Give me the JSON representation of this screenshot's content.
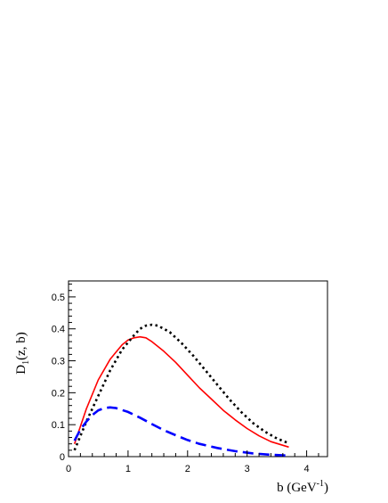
{
  "chart_data": {
    "type": "line",
    "xlabel": "b (GeV",
    "xlabel_sup": "-1",
    "xlabel_close": ")",
    "ylabel": "D",
    "ylabel_sub": "1",
    "ylabel_rest": "(z, b)",
    "xlim": [
      0,
      4.35
    ],
    "ylim": [
      0,
      0.55
    ],
    "xticks": [
      0,
      1,
      2,
      3,
      4
    ],
    "xtick_labels": [
      "0",
      "1",
      "2",
      "3",
      "4"
    ],
    "yticks": [
      0,
      0.1,
      0.2,
      0.3,
      0.4,
      0.5
    ],
    "ytick_labels": [
      "0",
      "0.1",
      "0.2",
      "0.3",
      "0.4",
      "0.5"
    ],
    "grid": false,
    "series": [
      {
        "color": "#ff0000",
        "style": "solid",
        "x": [
          0.1,
          0.3,
          0.5,
          0.7,
          0.9,
          1.0,
          1.1,
          1.2,
          1.3,
          1.4,
          1.6,
          1.8,
          2.0,
          2.2,
          2.4,
          2.6,
          2.8,
          3.0,
          3.2,
          3.4,
          3.7
        ],
        "y": [
          0.04,
          0.15,
          0.24,
          0.305,
          0.35,
          0.365,
          0.372,
          0.375,
          0.372,
          0.36,
          0.33,
          0.295,
          0.255,
          0.215,
          0.18,
          0.145,
          0.115,
          0.088,
          0.065,
          0.047,
          0.03
        ]
      },
      {
        "color": "#000000",
        "style": "dotted",
        "x": [
          0.1,
          0.3,
          0.5,
          0.7,
          0.9,
          1.1,
          1.2,
          1.3,
          1.4,
          1.5,
          1.7,
          1.9,
          2.1,
          2.3,
          2.5,
          2.7,
          2.9,
          3.1,
          3.3,
          3.5,
          3.7
        ],
        "y": [
          0.02,
          0.11,
          0.19,
          0.27,
          0.335,
          0.38,
          0.4,
          0.41,
          0.413,
          0.41,
          0.39,
          0.355,
          0.315,
          0.27,
          0.225,
          0.18,
          0.14,
          0.105,
          0.078,
          0.057,
          0.042
        ]
      },
      {
        "color": "#0000ff",
        "style": "dashed",
        "x": [
          0.1,
          0.2,
          0.3,
          0.4,
          0.5,
          0.6,
          0.7,
          0.8,
          1.0,
          1.2,
          1.4,
          1.6,
          1.8,
          2.0,
          2.2,
          2.5,
          2.8,
          3.1,
          3.4,
          3.7
        ],
        "y": [
          0.05,
          0.085,
          0.11,
          0.13,
          0.145,
          0.152,
          0.154,
          0.152,
          0.14,
          0.122,
          0.102,
          0.083,
          0.067,
          0.052,
          0.04,
          0.027,
          0.017,
          0.01,
          0.006,
          0.003
        ]
      }
    ]
  }
}
